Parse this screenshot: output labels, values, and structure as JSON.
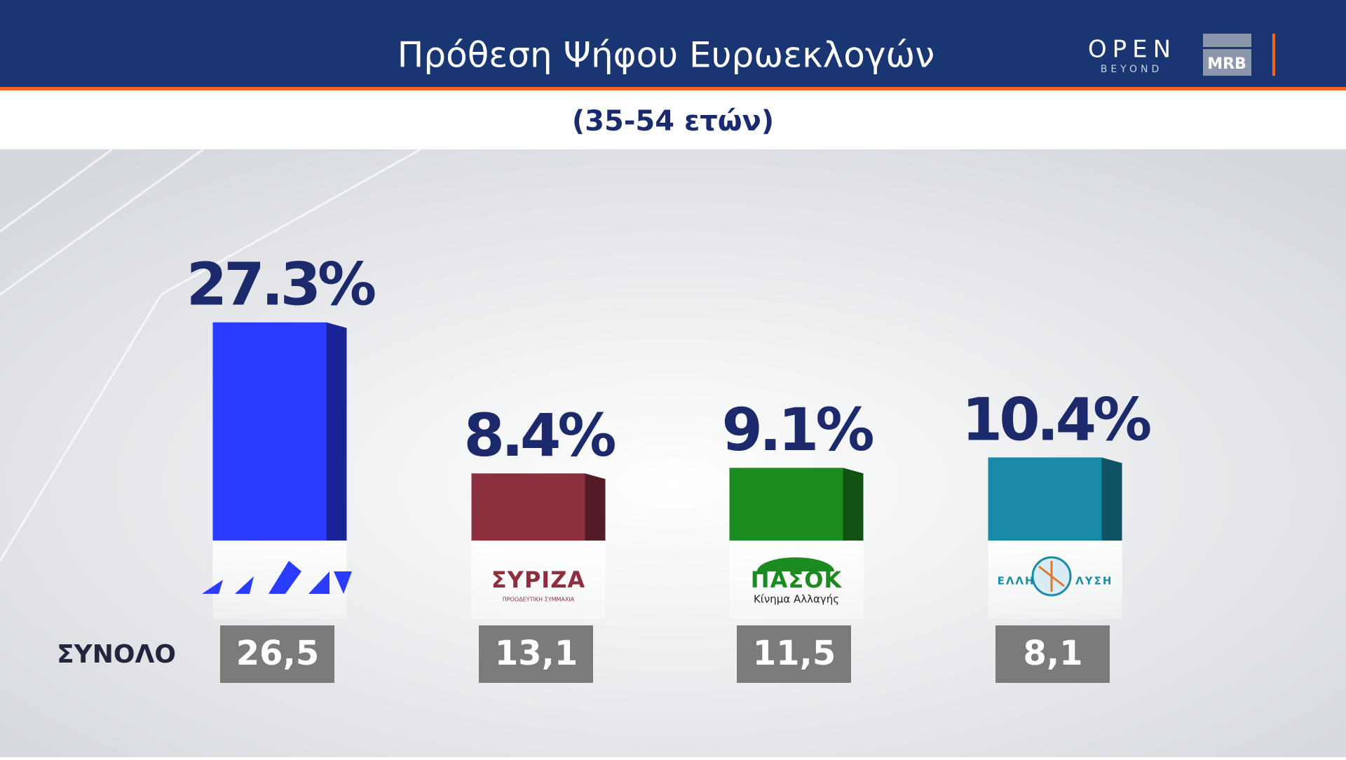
{
  "chart_data": {
    "type": "bar3d",
    "title": "Πρόθεση Ψήφου Ευρωεκλογών",
    "subtitle": "(35-54 ετών)",
    "categories": [
      null,
      "ΣΥΡΙΖΑ",
      "ΠΑΣΟΚ",
      "ΕΛΛΗΝΙΚΗ ΛΥΣΗ"
    ],
    "category_subtitles": [
      null,
      "ΠΡΟΟΔΕΥΤΙΚΗ ΣΥΜΜΑΧΙΑ",
      "Κίνημα Αλλαγής",
      null
    ],
    "values": [
      27.3,
      8.4,
      9.1,
      10.4
    ],
    "value_labels": [
      "27.3%",
      "8.4%",
      "9.1%",
      "10.4%"
    ],
    "colors": [
      "#2a3cff",
      "#8c2f3f",
      "#1b8a1f",
      "#1a8aa8"
    ],
    "total": {
      "label": "ΣΥΝΟΛΟ",
      "values": [
        26.5,
        13.1,
        11.5,
        8.1
      ],
      "value_labels": [
        "26,5",
        "13,1",
        "11,5",
        "8,1"
      ]
    }
  },
  "branding": {
    "channel": "OPEN",
    "channel_tagline": "BEYOND",
    "pollster": "MRB"
  }
}
